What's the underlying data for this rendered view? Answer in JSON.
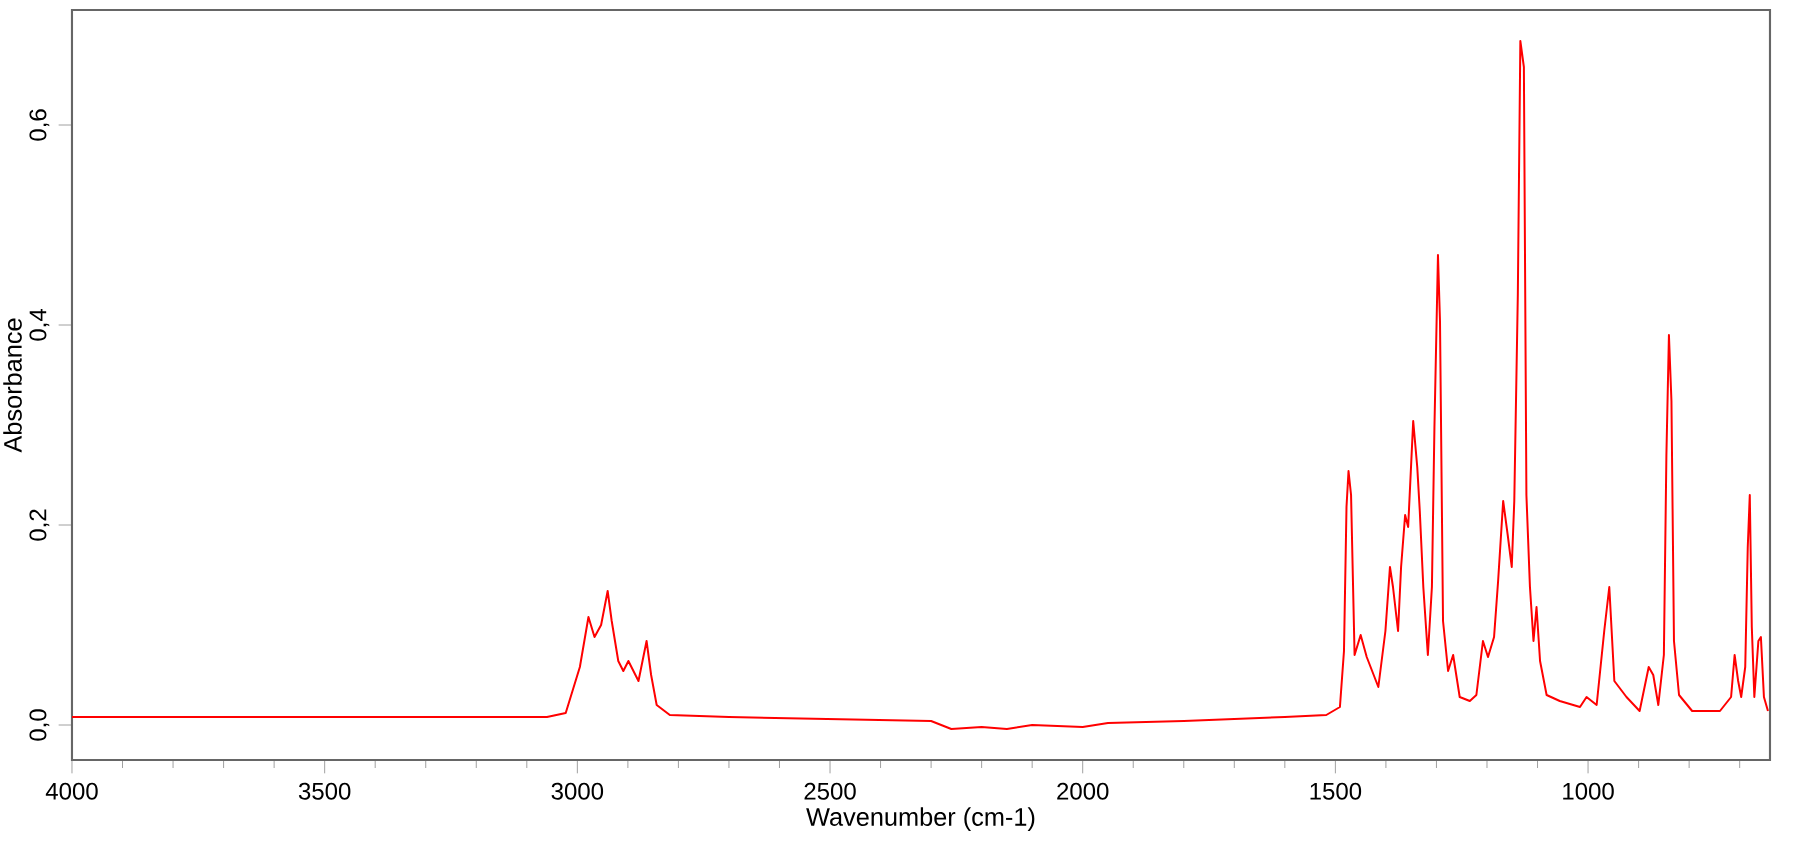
{
  "chart_data": {
    "type": "line",
    "xlabel": "Wavenumber (cm-1)",
    "ylabel": "Absorbance",
    "color": "#ff0000",
    "x": [
      4000,
      3800,
      3600,
      3400,
      3200,
      3060,
      3023,
      2995,
      2978,
      2966,
      2953,
      2940,
      2932,
      2919,
      2909,
      2899,
      2889,
      2879,
      2863,
      2854,
      2843,
      2817,
      2700,
      2500,
      2300,
      2260,
      2200,
      2150,
      2100,
      2000,
      1950,
      1800,
      1700,
      1600,
      1518,
      1491,
      1483,
      1478,
      1474,
      1469,
      1462,
      1450,
      1438,
      1415,
      1401,
      1392,
      1386,
      1376,
      1370,
      1362,
      1356,
      1346,
      1338,
      1333,
      1326,
      1317,
      1309,
      1304,
      1297,
      1293,
      1287,
      1277,
      1267,
      1254,
      1234,
      1221,
      1208,
      1198,
      1186,
      1178,
      1168,
      1159,
      1151,
      1146,
      1139,
      1134,
      1127,
      1122,
      1115,
      1108,
      1102,
      1095,
      1082,
      1056,
      1016,
      1003,
      983,
      968,
      958,
      948,
      924,
      898,
      880,
      871,
      861,
      850,
      845,
      840,
      835,
      830,
      820,
      794,
      739,
      717,
      710,
      703,
      697,
      689,
      684,
      680,
      676,
      671,
      663,
      658,
      652,
      644
    ],
    "values": [
      0.008,
      0.008,
      0.008,
      0.008,
      0.008,
      0.008,
      0.012,
      0.058,
      0.108,
      0.088,
      0.1,
      0.134,
      0.104,
      0.064,
      0.054,
      0.064,
      0.054,
      0.044,
      0.084,
      0.05,
      0.02,
      0.01,
      0.008,
      0.006,
      0.004,
      -0.004,
      -0.002,
      -0.004,
      0.0,
      -0.002,
      0.002,
      0.004,
      0.006,
      0.008,
      0.01,
      0.018,
      0.074,
      0.218,
      0.254,
      0.23,
      0.07,
      0.09,
      0.068,
      0.038,
      0.094,
      0.158,
      0.138,
      0.094,
      0.158,
      0.21,
      0.198,
      0.304,
      0.258,
      0.214,
      0.138,
      0.07,
      0.138,
      0.298,
      0.47,
      0.404,
      0.104,
      0.054,
      0.07,
      0.028,
      0.024,
      0.03,
      0.084,
      0.068,
      0.088,
      0.144,
      0.224,
      0.19,
      0.158,
      0.224,
      0.43,
      0.684,
      0.658,
      0.23,
      0.138,
      0.084,
      0.118,
      0.064,
      0.03,
      0.024,
      0.018,
      0.028,
      0.02,
      0.094,
      0.138,
      0.044,
      0.028,
      0.014,
      0.058,
      0.05,
      0.02,
      0.07,
      0.27,
      0.39,
      0.324,
      0.084,
      0.03,
      0.014,
      0.014,
      0.028,
      0.07,
      0.044,
      0.028,
      0.058,
      0.178,
      0.23,
      0.098,
      0.028,
      0.084,
      0.088,
      0.028,
      0.014
    ],
    "xlim": [
      4000,
      640
    ],
    "ylim": [
      -0.035,
      0.715
    ],
    "xticks": [
      4000,
      {
        "value": 3900,
        "label": null
      },
      {
        "value": 3800,
        "label": null
      },
      {
        "value": 3700,
        "label": null
      },
      {
        "value": 3600,
        "label": null
      },
      3500,
      {
        "value": 3400,
        "label": null
      },
      {
        "value": 3300,
        "label": null
      },
      {
        "value": 3200,
        "label": null
      },
      {
        "value": 3100,
        "label": null
      },
      3000,
      {
        "value": 2900,
        "label": null
      },
      {
        "value": 2800,
        "label": null
      },
      {
        "value": 2700,
        "label": null
      },
      {
        "value": 2600,
        "label": null
      },
      2500,
      {
        "value": 2400,
        "label": null
      },
      {
        "value": 2300,
        "label": null
      },
      {
        "value": 2200,
        "label": null
      },
      {
        "value": 2100,
        "label": null
      },
      2000,
      {
        "value": 1900,
        "label": null
      },
      {
        "value": 1800,
        "label": null
      },
      {
        "value": 1700,
        "label": null
      },
      {
        "value": 1600,
        "label": null
      },
      1500,
      {
        "value": 1400,
        "label": null
      },
      {
        "value": 1300,
        "label": null
      },
      {
        "value": 1200,
        "label": null
      },
      {
        "value": 1100,
        "label": null
      },
      1000,
      {
        "value": 900,
        "label": null
      },
      {
        "value": 800,
        "label": null
      },
      {
        "value": 700,
        "label": null
      }
    ],
    "yticks": [
      {
        "value": 0.0,
        "label": "0,0"
      },
      {
        "value": 0.2,
        "label": "0,2"
      },
      {
        "value": 0.4,
        "label": "0,4"
      },
      {
        "value": 0.6,
        "label": "0,6"
      }
    ]
  }
}
